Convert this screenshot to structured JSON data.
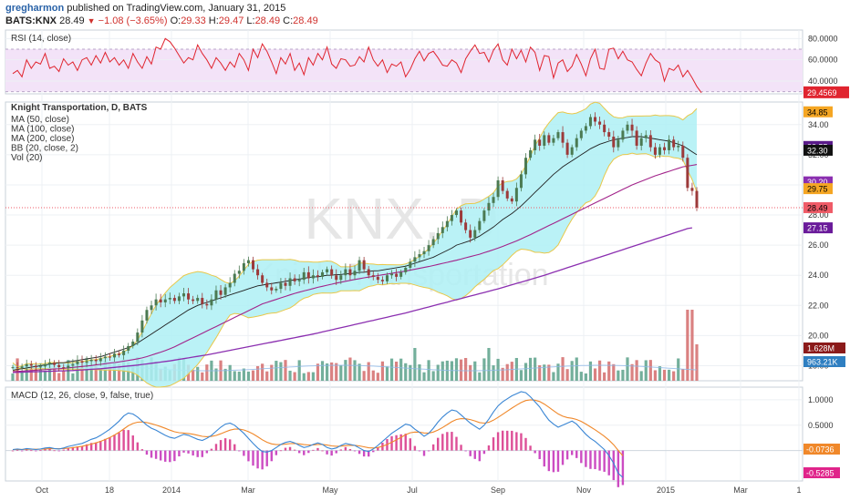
{
  "header": {
    "user": "gregharmon",
    "published": "published on TradingView.com, January 31, 2015",
    "symbol": "BATS:KNX",
    "last": "28.49",
    "change": "−1.08 (−3.65%)",
    "o_label": "O:",
    "o": "29.33",
    "h_label": "H:",
    "h": "29.47",
    "l_label": "L:",
    "l": "28.49",
    "c_label": "C:",
    "c": "28.49"
  },
  "colors": {
    "rsi": "#e0242f",
    "rsi_band_fill": "#f3e3f8",
    "ma50": "#1f1f1f",
    "ma100": "#a2238a",
    "ma200": "#8b2fb0",
    "bb_fill": "#aef0f4",
    "bb_line": "#e8c84a",
    "candle_up": "#4b7a52",
    "candle_down": "#9c3a3a",
    "vol_up": "#5aa18a",
    "vol_down": "#d46b6b",
    "macd": "#3a86d4",
    "signal": "#f0882a",
    "hist_pos": "#dd4f97",
    "hist_neg": "#cc4cc2",
    "watermark": "#e6e6e6",
    "grid": "#edf0f4"
  },
  "chart_data": [
    {
      "id": "rsi",
      "type": "line",
      "title": "RSI (14, close)",
      "ylim": [
        28,
        88
      ],
      "yticks": [
        "80.0000",
        "60.0000",
        "40.0000"
      ],
      "band": [
        30,
        70
      ],
      "last_label": "29.4569",
      "values": [
        47,
        50,
        44,
        60,
        52,
        58,
        56,
        66,
        52,
        54,
        49,
        61,
        55,
        58,
        50,
        60,
        62,
        55,
        64,
        57,
        67,
        58,
        62,
        55,
        60,
        52,
        66,
        58,
        52,
        63,
        56,
        72,
        70,
        80,
        77,
        71,
        64,
        57,
        62,
        60,
        74,
        66,
        60,
        52,
        62,
        57,
        50,
        58,
        53,
        66,
        60,
        50,
        70,
        62,
        75,
        68,
        58,
        47,
        62,
        56,
        66,
        50,
        57,
        46,
        62,
        55,
        66,
        60,
        72,
        56,
        52,
        61,
        60,
        54,
        55,
        63,
        58,
        72,
        60,
        54,
        60,
        48,
        56,
        54,
        58,
        44,
        51,
        61,
        68,
        59,
        66,
        68,
        62,
        55,
        54,
        60,
        57,
        48,
        61,
        68,
        74,
        66,
        67,
        58,
        69,
        75,
        60,
        55,
        70,
        61,
        69,
        58,
        72,
        67,
        50,
        64,
        63,
        43,
        57,
        60,
        49,
        54,
        65,
        56,
        45,
        61,
        70,
        52,
        51,
        70,
        71,
        61,
        68,
        60,
        58,
        51,
        45,
        57,
        66,
        60,
        57,
        40,
        52,
        50,
        55,
        44,
        50,
        43,
        35,
        29
      ]
    },
    {
      "id": "price",
      "type": "line",
      "title": "Knight Transportation, D, BATS",
      "legend": [
        "MA (50, close)",
        "MA (100, close)",
        "MA (200, close)",
        "BB (20, close, 2)",
        "Vol (20)"
      ],
      "ylim": [
        17,
        35.5
      ],
      "yticks": [
        "34.00",
        "32.00",
        "30.00",
        "28.00",
        "26.00",
        "24.00",
        "22.00",
        "20.00",
        "18.00"
      ],
      "x_ticks": [
        "Oct",
        "18",
        "2014",
        "Mar",
        "May",
        "Jul",
        "Sep",
        "Nov",
        "2015",
        "Mar",
        "1"
      ],
      "watermark": "KNX, D",
      "watermark_sub": "Knight Transportation",
      "close": [
        17.9,
        17.85,
        17.95,
        18.1,
        18.0,
        17.9,
        17.95,
        18.1,
        18.2,
        18.05,
        17.9,
        17.85,
        18.0,
        18.1,
        18.3,
        18.2,
        18.3,
        18.4,
        18.3,
        18.5,
        18.6,
        18.55,
        18.8,
        18.7,
        19.0,
        19.3,
        19.6,
        20.2,
        21.0,
        21.7,
        22.0,
        22.4,
        22.2,
        22.4,
        22.5,
        22.3,
        22.6,
        22.8,
        22.4,
        22.3,
        22.5,
        22.1,
        22.0,
        22.4,
        23.0,
        22.7,
        23.2,
        23.5,
        24.1,
        24.3,
        24.8,
        25.0,
        24.4,
        24.0,
        23.5,
        23.2,
        23.0,
        23.1,
        23.5,
        23.3,
        23.8,
        23.6,
        23.7,
        24.2,
        23.8,
        24.0,
        23.9,
        24.2,
        24.4,
        24.0,
        23.7,
        24.0,
        24.4,
        24.0,
        24.3,
        25.0,
        24.4,
        24.0,
        23.9,
        23.7,
        23.6,
        24.0,
        24.1,
        23.9,
        24.2,
        24.5,
        24.9,
        25.2,
        25.4,
        25.6,
        26.0,
        26.4,
        26.8,
        27.2,
        27.6,
        28.0,
        28.3,
        27.5,
        27.0,
        26.5,
        27.0,
        27.6,
        28.3,
        28.8,
        29.2,
        30.3,
        29.6,
        29.1,
        28.9,
        29.8,
        30.7,
        31.8,
        32.3,
        33.0,
        32.6,
        33.3,
        32.8,
        33.1,
        33.5,
        32.8,
        32.0,
        32.5,
        33.1,
        33.6,
        33.9,
        34.5,
        34.2,
        34.0,
        33.5,
        33.2,
        32.5,
        33.0,
        33.6,
        34.0,
        33.6,
        32.6,
        33.1,
        33.3,
        32.5,
        32.0,
        32.5,
        32.3,
        33.0,
        32.5,
        32.6,
        31.8,
        29.8,
        29.6,
        28.49
      ],
      "ma50": [
        17.7,
        17.75,
        17.8,
        17.85,
        17.9,
        17.95,
        18.0,
        18.05,
        18.1,
        18.15,
        18.2,
        18.2,
        18.25,
        18.3,
        18.35,
        18.4,
        18.45,
        18.5,
        18.55,
        18.6,
        18.7,
        18.8,
        18.9,
        19.0,
        19.1,
        19.2,
        19.35,
        19.5,
        19.7,
        19.9,
        20.1,
        20.3,
        20.5,
        20.7,
        20.9,
        21.1,
        21.3,
        21.5,
        21.7,
        21.85,
        22.0,
        22.1,
        22.2,
        22.3,
        22.4,
        22.5,
        22.6,
        22.7,
        22.8,
        22.9,
        23.0,
        23.1,
        23.2,
        23.3,
        23.35,
        23.4,
        23.45,
        23.5,
        23.55,
        23.6,
        23.65,
        23.7,
        23.75,
        23.8,
        23.85,
        23.9,
        23.9,
        23.95,
        24.0,
        24.0,
        24.05,
        24.05,
        24.1,
        24.1,
        24.15,
        24.2,
        24.2,
        24.25,
        24.3,
        24.3,
        24.35,
        24.4,
        24.45,
        24.5,
        24.55,
        24.6,
        24.7,
        24.8,
        24.9,
        25.0,
        25.1,
        25.2,
        25.35,
        25.5,
        25.65,
        25.8,
        26.0,
        26.1,
        26.2,
        26.3,
        26.45,
        26.6,
        26.8,
        27.0,
        27.2,
        27.45,
        27.7,
        27.9,
        28.1,
        28.35,
        28.6,
        28.9,
        29.2,
        29.5,
        29.8,
        30.1,
        30.4,
        30.7,
        30.95,
        31.2,
        31.4,
        31.6,
        31.8,
        32.0,
        32.2,
        32.4,
        32.55,
        32.7,
        32.8,
        32.9,
        33.0,
        33.05,
        33.1,
        33.15,
        33.2,
        33.2,
        33.2,
        33.15,
        33.1,
        33.05,
        33.0,
        32.95,
        32.9,
        32.8,
        32.7,
        32.6,
        32.4,
        32.2,
        32.0
      ],
      "ma100": [
        17.6,
        17.62,
        17.64,
        17.66,
        17.68,
        17.7,
        17.72,
        17.74,
        17.76,
        17.78,
        17.8,
        17.83,
        17.86,
        17.89,
        17.92,
        17.95,
        17.98,
        18.01,
        18.05,
        18.09,
        18.13,
        18.17,
        18.21,
        18.25,
        18.3,
        18.35,
        18.4,
        18.46,
        18.52,
        18.6,
        18.7,
        18.8,
        18.9,
        19.0,
        19.12,
        19.25,
        19.4,
        19.55,
        19.7,
        19.85,
        20.0,
        20.15,
        20.3,
        20.45,
        20.6,
        20.75,
        20.9,
        21.05,
        21.2,
        21.35,
        21.5,
        21.65,
        21.8,
        21.95,
        22.1,
        22.2,
        22.3,
        22.4,
        22.5,
        22.6,
        22.7,
        22.8,
        22.88,
        22.96,
        23.04,
        23.12,
        23.2,
        23.27,
        23.34,
        23.41,
        23.48,
        23.54,
        23.6,
        23.66,
        23.72,
        23.78,
        23.83,
        23.88,
        23.93,
        23.98,
        24.03,
        24.08,
        24.13,
        24.18,
        24.23,
        24.28,
        24.34,
        24.4,
        24.46,
        24.52,
        24.58,
        24.65,
        24.72,
        24.79,
        24.86,
        24.93,
        25.0,
        25.08,
        25.16,
        25.24,
        25.32,
        25.4,
        25.5,
        25.6,
        25.7,
        25.8,
        25.92,
        26.04,
        26.16,
        26.28,
        26.42,
        26.56,
        26.7,
        26.85,
        27.0,
        27.15,
        27.3,
        27.45,
        27.6,
        27.75,
        27.9,
        28.05,
        28.2,
        28.35,
        28.5,
        28.65,
        28.8,
        28.95,
        29.1,
        29.25,
        29.4,
        29.55,
        29.7,
        29.85,
        30.0,
        30.12,
        30.24,
        30.36,
        30.48,
        30.6,
        30.7,
        30.8,
        30.9,
        31.0,
        31.1,
        31.2,
        31.25,
        31.3,
        31.35
      ],
      "ma200": [
        17.55,
        17.56,
        17.57,
        17.58,
        17.59,
        17.6,
        17.61,
        17.62,
        17.63,
        17.64,
        17.65,
        17.66,
        17.67,
        17.68,
        17.7,
        17.72,
        17.74,
        17.76,
        17.78,
        17.8,
        17.83,
        17.86,
        17.89,
        17.92,
        17.95,
        17.98,
        18.01,
        18.04,
        18.08,
        18.12,
        18.16,
        18.2,
        18.24,
        18.28,
        18.32,
        18.37,
        18.42,
        18.47,
        18.52,
        18.57,
        18.62,
        18.67,
        18.72,
        18.78,
        18.84,
        18.9,
        18.96,
        19.02,
        19.08,
        19.14,
        19.2,
        19.26,
        19.32,
        19.38,
        19.44,
        19.5,
        19.56,
        19.62,
        19.68,
        19.74,
        19.8,
        19.86,
        19.92,
        19.98,
        20.04,
        20.1,
        20.17,
        20.24,
        20.31,
        20.38,
        20.45,
        20.52,
        20.59,
        20.66,
        20.73,
        20.8,
        20.87,
        20.94,
        21.01,
        21.08,
        21.15,
        21.22,
        21.29,
        21.36,
        21.43,
        21.5,
        21.58,
        21.66,
        21.74,
        21.82,
        21.9,
        21.98,
        22.06,
        22.14,
        22.22,
        22.3,
        22.38,
        22.46,
        22.54,
        22.62,
        22.7,
        22.78,
        22.86,
        22.94,
        23.02,
        23.1,
        23.19,
        23.28,
        23.37,
        23.46,
        23.55,
        23.64,
        23.73,
        23.82,
        23.91,
        24.0,
        24.1,
        24.2,
        24.3,
        24.4,
        24.5,
        24.6,
        24.7,
        24.8,
        24.9,
        25.0,
        25.1,
        25.2,
        25.3,
        25.4,
        25.5,
        25.6,
        25.7,
        25.8,
        25.9,
        26.0,
        26.1,
        26.2,
        26.3,
        26.4,
        26.5,
        26.6,
        26.7,
        26.8,
        26.9,
        27.0,
        27.1,
        27.15
      ],
      "price_labels": [
        {
          "text": "34.85",
          "value": 34.85,
          "color": "#f5a623",
          "fg": "#000000"
        },
        {
          "text": "32.55",
          "value": 32.55,
          "color": "#5a1b8a",
          "fg": "#ffffff"
        },
        {
          "text": "32.30",
          "value": 32.3,
          "color": "#111111",
          "fg": "#ffffff"
        },
        {
          "text": "30.20",
          "value": 30.2,
          "color": "#8b2fb0",
          "fg": "#ffffff"
        },
        {
          "text": "29.75",
          "value": 29.75,
          "color": "#f5a623",
          "fg": "#000000"
        },
        {
          "text": "28.49",
          "value": 28.49,
          "color": "#ef5b67",
          "fg": "#000000"
        },
        {
          "text": "27.15",
          "value": 27.15,
          "color": "#6a1b9a",
          "fg": "#ffffff"
        }
      ],
      "volume_labels": [
        {
          "text": "1.628M",
          "color": "#8b1a1a",
          "fg": "#ffffff"
        },
        {
          "text": "963.21K",
          "color": "#2f7fc1",
          "fg": "#ffffff"
        }
      ]
    },
    {
      "id": "macd",
      "type": "line",
      "title": "MACD (12, 26, close, 9, false, true)",
      "ylim": [
        -0.6,
        1.25
      ],
      "yticks": [
        "1.0000",
        "0.5000"
      ],
      "last_labels": [
        {
          "text": "-0.0736",
          "color": "#f0882a"
        },
        {
          "text": "-0.5285",
          "color": "#e0248a"
        }
      ],
      "macd": [
        0.02,
        0.03,
        0.02,
        0.04,
        0.03,
        0.02,
        0.03,
        0.05,
        0.06,
        0.04,
        0.03,
        0.05,
        0.08,
        0.1,
        0.12,
        0.14,
        0.18,
        0.22,
        0.25,
        0.3,
        0.36,
        0.42,
        0.5,
        0.58,
        0.68,
        0.74,
        0.72,
        0.66,
        0.58,
        0.5,
        0.44,
        0.4,
        0.35,
        0.3,
        0.26,
        0.24,
        0.28,
        0.32,
        0.3,
        0.26,
        0.22,
        0.2,
        0.24,
        0.3,
        0.38,
        0.46,
        0.52,
        0.54,
        0.5,
        0.42,
        0.34,
        0.24,
        0.14,
        0.05,
        -0.02,
        -0.03,
        0.0,
        0.06,
        0.12,
        0.16,
        0.18,
        0.15,
        0.1,
        0.06,
        0.08,
        0.12,
        0.15,
        0.12,
        0.06,
        0.03,
        0.05,
        0.1,
        0.14,
        0.12,
        0.1,
        0.05,
        0.0,
        -0.02,
        0.03,
        0.1,
        0.18,
        0.26,
        0.34,
        0.4,
        0.46,
        0.52,
        0.5,
        0.42,
        0.36,
        0.28,
        0.34,
        0.44,
        0.56,
        0.66,
        0.74,
        0.8,
        0.78,
        0.7,
        0.62,
        0.54,
        0.48,
        0.42,
        0.5,
        0.62,
        0.76,
        0.88,
        0.96,
        1.02,
        1.08,
        1.12,
        1.16,
        1.14,
        1.06,
        0.96,
        0.86,
        0.72,
        0.6,
        0.52,
        0.46,
        0.5,
        0.54,
        0.58,
        0.52,
        0.42,
        0.32,
        0.24,
        0.18,
        0.1,
        0.02,
        -0.1,
        -0.25,
        -0.45,
        -0.53
      ]
    }
  ]
}
